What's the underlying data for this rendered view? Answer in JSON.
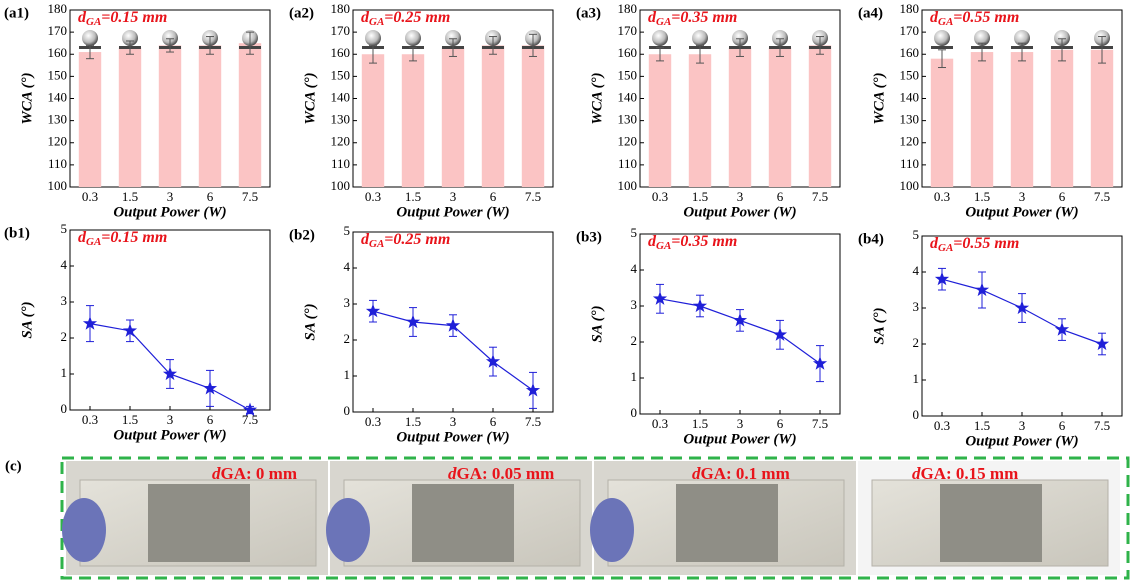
{
  "chart_data": [
    {
      "type": "bar",
      "panel": "(a1)",
      "annotation": [
        "d",
        "GA",
        "=0.15 mm"
      ],
      "x_label": "Output Power (W)",
      "y_label": "WCA (°)",
      "categories": [
        "0.3",
        "1.5",
        "3",
        "6",
        "7.5"
      ],
      "values": [
        161,
        163,
        164,
        164,
        165
      ],
      "errors": [
        3,
        3,
        3,
        4,
        5
      ],
      "color": "#fbc4c4",
      "ylim": [
        100,
        180
      ],
      "yticks": [
        100,
        110,
        120,
        130,
        140,
        150,
        160,
        170,
        180
      ]
    },
    {
      "type": "bar",
      "panel": "(a2)",
      "annotation": [
        "d",
        "GA",
        "=0.25 mm"
      ],
      "x_label": "Output Power (W)",
      "y_label": "WCA (°)",
      "categories": [
        "0.3",
        "1.5",
        "3",
        "6",
        "7.5"
      ],
      "values": [
        160,
        160,
        163,
        164,
        164
      ],
      "errors": [
        4,
        3,
        4,
        4,
        5
      ],
      "color": "#fbc4c4",
      "ylim": [
        100,
        180
      ],
      "yticks": [
        100,
        110,
        120,
        130,
        140,
        150,
        160,
        170,
        180
      ]
    },
    {
      "type": "bar",
      "panel": "(a3)",
      "annotation": [
        "d",
        "GA",
        "=0.35 mm"
      ],
      "x_label": "Output Power (W)",
      "y_label": "WCA (°)",
      "categories": [
        "0.3",
        "1.5",
        "3",
        "6",
        "7.5"
      ],
      "values": [
        160,
        160,
        163,
        163,
        164
      ],
      "errors": [
        3,
        4,
        4,
        4,
        4
      ],
      "color": "#fbc4c4",
      "ylim": [
        100,
        180
      ],
      "yticks": [
        100,
        110,
        120,
        130,
        140,
        150,
        160,
        170,
        180
      ]
    },
    {
      "type": "bar",
      "panel": "(a4)",
      "annotation": [
        "d",
        "GA",
        "=0.55 mm"
      ],
      "x_label": "Output Power (W)",
      "y_label": "WCA (°)",
      "categories": [
        "0.3",
        "1.5",
        "3",
        "6",
        "7.5"
      ],
      "values": [
        158,
        161,
        161,
        162,
        162
      ],
      "errors": [
        4,
        4,
        4,
        5,
        6
      ],
      "color": "#fbc4c4",
      "ylim": [
        100,
        180
      ],
      "yticks": [
        100,
        110,
        120,
        130,
        140,
        150,
        160,
        170,
        180
      ]
    },
    {
      "type": "line",
      "panel": "(b1)",
      "annotation": [
        "d",
        "GA",
        "=0.15 mm"
      ],
      "x_label": "Output Power (W)",
      "y_label": "SA (°)",
      "categories": [
        "0.3",
        "1.5",
        "3",
        "6",
        "7.5"
      ],
      "values": [
        2.4,
        2.2,
        1.0,
        0.6,
        0.0
      ],
      "errors": [
        0.5,
        0.3,
        0.4,
        0.5,
        0.1
      ],
      "color": "#1f1fd8",
      "ylim": [
        0,
        5
      ],
      "yticks": [
        0,
        1,
        2,
        3,
        4,
        5
      ]
    },
    {
      "type": "line",
      "panel": "(b2)",
      "annotation": [
        "d",
        "GA",
        "=0.25 mm"
      ],
      "x_label": "Output Power (W)",
      "y_label": "SA (°)",
      "categories": [
        "0.3",
        "1.5",
        "3",
        "6",
        "7.5"
      ],
      "values": [
        2.8,
        2.5,
        2.4,
        1.4,
        0.6
      ],
      "errors": [
        0.3,
        0.4,
        0.3,
        0.4,
        0.5
      ],
      "color": "#1f1fd8",
      "ylim": [
        0,
        5
      ],
      "yticks": [
        0,
        1,
        2,
        3,
        4,
        5
      ]
    },
    {
      "type": "line",
      "panel": "(b3)",
      "annotation": [
        "d",
        "GA",
        "=0.35 mm"
      ],
      "x_label": "Output Power (W)",
      "y_label": "SA (°)",
      "categories": [
        "0.3",
        "1.5",
        "3",
        "6",
        "7.5"
      ],
      "values": [
        3.2,
        3.0,
        2.6,
        2.2,
        1.4
      ],
      "errors": [
        0.4,
        0.3,
        0.3,
        0.4,
        0.5
      ],
      "color": "#1f1fd8",
      "ylim": [
        0,
        5
      ],
      "yticks": [
        0,
        1,
        2,
        3,
        4,
        5
      ]
    },
    {
      "type": "line",
      "panel": "(b4)",
      "annotation": [
        "d",
        "GA",
        "=0.55 mm"
      ],
      "x_label": "Output Power (W)",
      "y_label": "SA (°)",
      "categories": [
        "0.3",
        "1.5",
        "3",
        "6",
        "7.5"
      ],
      "values": [
        3.8,
        3.5,
        3.0,
        2.4,
        2.0
      ],
      "errors": [
        0.3,
        0.5,
        0.4,
        0.3,
        0.3
      ],
      "color": "#1f1fd8",
      "ylim": [
        0,
        5
      ],
      "yticks": [
        0,
        1,
        2,
        3,
        4,
        5
      ]
    }
  ],
  "photos": {
    "panel": "(c)",
    "captions": [
      [
        "d",
        "GA: 0 mm"
      ],
      [
        "d",
        "GA: 0.05 mm"
      ],
      [
        "d",
        "GA: 0.1 mm"
      ],
      [
        "d",
        "GA: 0.15 mm"
      ]
    ]
  }
}
